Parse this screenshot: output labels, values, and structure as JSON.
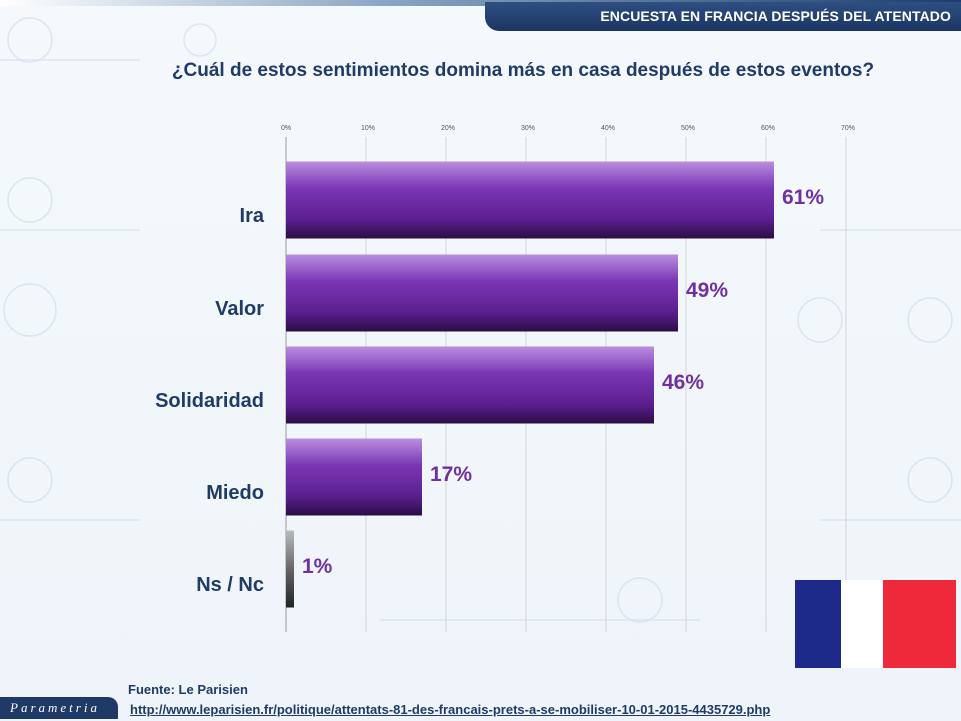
{
  "header": {
    "title": "ENCUESTA EN FRANCIA DESPUÉS DEL ATENTADO"
  },
  "question": "¿Cuál de estos sentimientos domina más en casa después de estos eventos?",
  "footer": {
    "source": "Fuente: Le Parisien",
    "url": "http://www.leparisien.fr/politique/attentats-81-des-francais-prets-a-se-mobiliser-10-01-2015-4435729.php",
    "logo": "Parametria"
  },
  "flag": {
    "colors": [
      "#1d2a8a",
      "#ffffff",
      "#ee2a3a"
    ]
  },
  "chart_data": {
    "type": "bar",
    "orientation": "horizontal",
    "title": "¿Cuál de estos sentimientos domina más en casa después de estos eventos?",
    "categories": [
      "Ira",
      "Valor",
      "Solidaridad",
      "Miedo",
      "Ns / Nc"
    ],
    "values": [
      61,
      49,
      46,
      17,
      1
    ],
    "value_labels": [
      "61%",
      "49%",
      "46%",
      "17%",
      "1%"
    ],
    "xlim": [
      0,
      70
    ],
    "ticks": [
      "0%",
      "10%",
      "20%",
      "30%",
      "40%",
      "50%",
      "60%",
      "70%"
    ],
    "grid": true,
    "colors": {
      "bar": "#7030a0",
      "bar_last": "#555555",
      "labels": "#1f3b66",
      "value_labels": "#7030a0"
    }
  }
}
